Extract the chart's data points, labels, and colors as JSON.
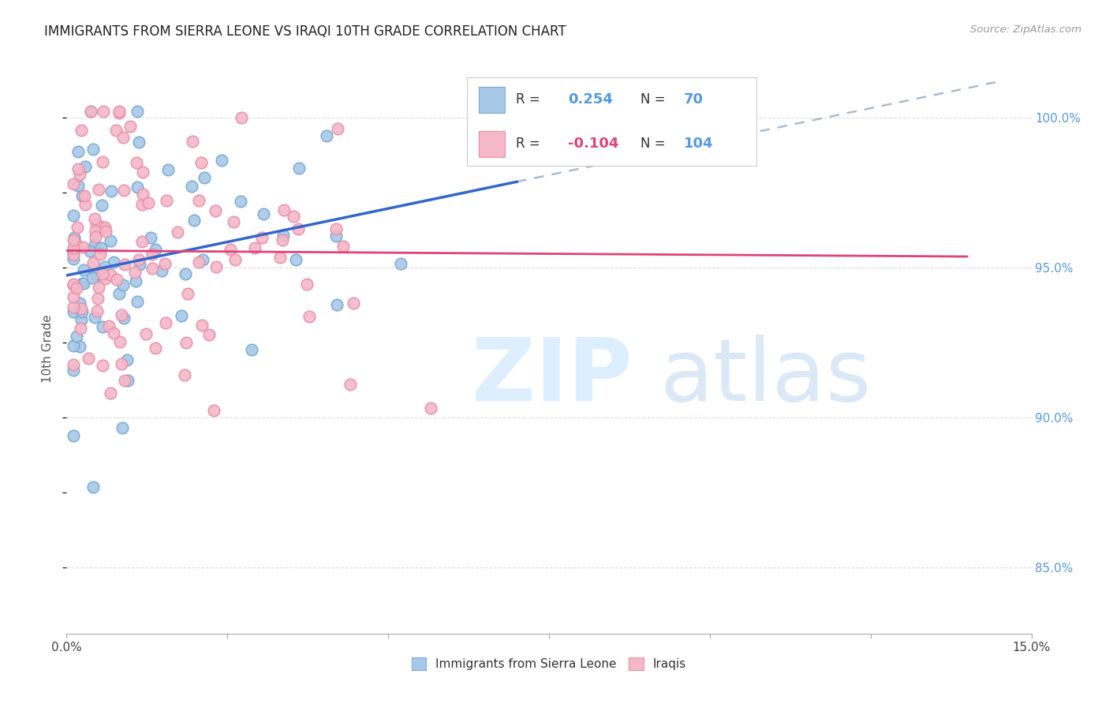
{
  "title": "IMMIGRANTS FROM SIERRA LEONE VS IRAQI 10TH GRADE CORRELATION CHART",
  "source": "Source: ZipAtlas.com",
  "ylabel": "10th Grade",
  "ytick_values": [
    0.85,
    0.9,
    0.95,
    1.0
  ],
  "xlim": [
    0.0,
    0.15
  ],
  "ylim": [
    0.828,
    1.018
  ],
  "legend_r_blue": "0.254",
  "legend_n_blue": "70",
  "legend_r_pink": "-0.104",
  "legend_n_pink": "104",
  "legend_label_blue": "Immigrants from Sierra Leone",
  "legend_label_pink": "Iraqis",
  "blue_color": "#a8c8e8",
  "blue_edge_color": "#7aaad4",
  "pink_color": "#f4b8c8",
  "pink_edge_color": "#e890a8",
  "trendline_blue_color": "#3366cc",
  "trendline_pink_color": "#dd4477",
  "trendline_dashed_color": "#aabbcc",
  "grid_color": "#dddddd",
  "tick_color": "#aaaaaa",
  "right_label_color": "#5599dd",
  "watermark_color": "#ddeeff"
}
